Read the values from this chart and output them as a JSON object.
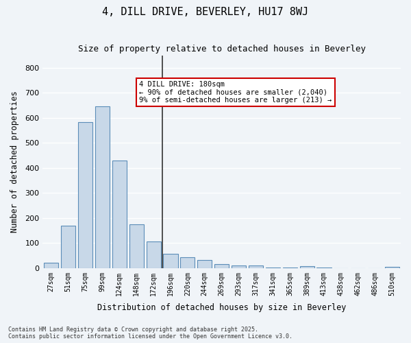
{
  "title": "4, DILL DRIVE, BEVERLEY, HU17 8WJ",
  "subtitle": "Size of property relative to detached houses in Beverley",
  "xlabel": "Distribution of detached houses by size in Beverley",
  "ylabel": "Number of detached properties",
  "categories": [
    "27sqm",
    "51sqm",
    "75sqm",
    "99sqm",
    "124sqm",
    "148sqm",
    "172sqm",
    "196sqm",
    "220sqm",
    "244sqm",
    "269sqm",
    "293sqm",
    "317sqm",
    "341sqm",
    "365sqm",
    "389sqm",
    "413sqm",
    "438sqm",
    "462sqm",
    "486sqm",
    "510sqm"
  ],
  "values": [
    20,
    168,
    583,
    647,
    430,
    175,
    105,
    58,
    43,
    32,
    15,
    10,
    9,
    3,
    3,
    7,
    2,
    0,
    0,
    0,
    5
  ],
  "bar_color": "#c8d8e8",
  "bar_edge_color": "#5b8db8",
  "vline_x_index": 6,
  "vline_color": "#333333",
  "annotation_title": "4 DILL DRIVE: 180sqm",
  "annotation_line1": "← 90% of detached houses are smaller (2,040)",
  "annotation_line2": "9% of semi-detached houses are larger (213) →",
  "annotation_box_color": "#cc0000",
  "background_color": "#f0f4f8",
  "grid_color": "#ffffff",
  "footer_line1": "Contains HM Land Registry data © Crown copyright and database right 2025.",
  "footer_line2": "Contains public sector information licensed under the Open Government Licence v3.0.",
  "ylim": [
    0,
    850
  ],
  "yticks": [
    0,
    100,
    200,
    300,
    400,
    500,
    600,
    700,
    800
  ]
}
